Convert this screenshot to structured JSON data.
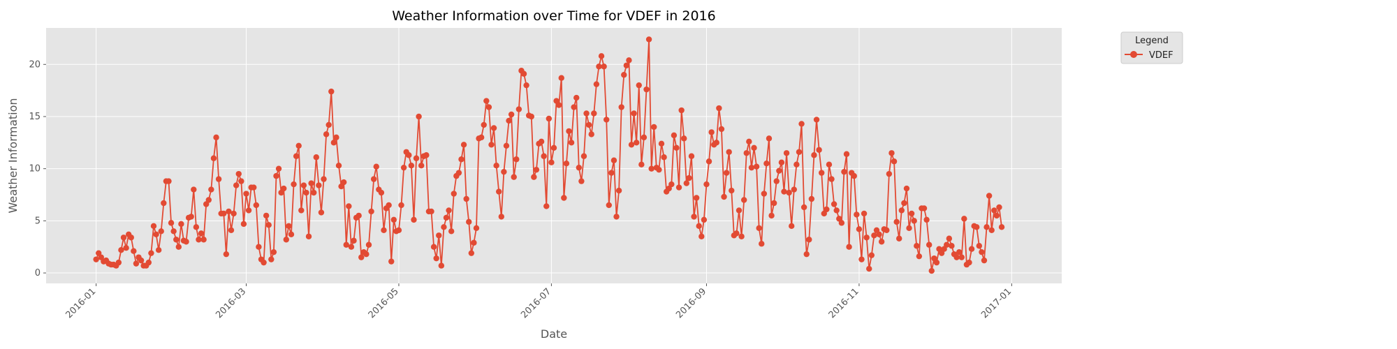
{
  "chart_data": {
    "type": "line",
    "title": "Weather Information over Time for VDEF in 2016",
    "xlabel": "Date",
    "ylabel": "Weather Information",
    "x_start": "2016-01-01",
    "x_step_days": 1,
    "xlim": [
      "2015-12-12",
      "2017-01-21"
    ],
    "ylim": [
      -1,
      23.5
    ],
    "x_ticks": [
      "2016-01",
      "2016-03",
      "2016-05",
      "2016-07",
      "2016-09",
      "2016-11",
      "2017-01"
    ],
    "y_ticks": [
      0,
      5,
      10,
      15,
      20
    ],
    "grid": true,
    "legend": {
      "title": "Legend",
      "position": "outside-top-right"
    },
    "series": [
      {
        "name": "VDEF",
        "color": "#e24a33",
        "marker": "circle",
        "values": [
          1.3,
          1.9,
          1.5,
          1.1,
          1.2,
          0.9,
          0.8,
          0.8,
          0.7,
          1.0,
          2.2,
          3.4,
          2.4,
          3.7,
          3.4,
          2.1,
          0.9,
          1.5,
          1.2,
          0.7,
          0.7,
          1.0,
          1.9,
          4.5,
          3.7,
          2.2,
          4.0,
          6.7,
          8.8,
          8.8,
          4.8,
          4.0,
          3.2,
          2.5,
          4.7,
          3.1,
          3.0,
          5.3,
          5.4,
          8.0,
          4.4,
          3.2,
          3.8,
          3.2,
          6.6,
          7.0,
          8.0,
          11.0,
          13.0,
          9.0,
          5.7,
          5.7,
          1.8,
          5.9,
          4.1,
          5.7,
          8.4,
          9.5,
          8.8,
          4.7,
          7.6,
          6.0,
          8.2,
          8.2,
          6.5,
          2.5,
          1.3,
          1.0,
          5.5,
          4.6,
          1.3,
          2.0,
          9.3,
          10.0,
          7.7,
          8.1,
          3.2,
          4.5,
          3.7,
          8.5,
          11.2,
          12.2,
          6.0,
          8.4,
          7.7,
          3.5,
          8.6,
          7.7,
          11.1,
          8.4,
          5.8,
          9.0,
          13.3,
          14.2,
          17.4,
          12.5,
          13.0,
          10.3,
          8.3,
          8.7,
          2.7,
          6.4,
          2.5,
          3.1,
          5.3,
          5.5,
          1.5,
          2.0,
          1.8,
          2.7,
          5.9,
          9.0,
          10.2,
          8.0,
          7.7,
          4.1,
          6.2,
          6.5,
          1.1,
          5.1,
          4.0,
          4.1,
          6.5,
          10.1,
          11.6,
          11.3,
          10.3,
          5.1,
          11.0,
          15.0,
          10.3,
          11.2,
          11.3,
          5.9,
          5.9,
          2.5,
          1.4,
          3.6,
          0.7,
          4.4,
          5.3,
          6.0,
          4.0,
          7.6,
          9.3,
          9.6,
          10.9,
          12.3,
          7.1,
          4.9,
          1.9,
          2.9,
          4.3,
          12.9,
          13.0,
          14.2,
          16.5,
          15.9,
          12.3,
          13.9,
          10.3,
          7.8,
          5.4,
          9.7,
          12.2,
          14.6,
          15.2,
          9.2,
          10.9,
          15.7,
          19.4,
          19.1,
          18.0,
          15.1,
          15.0,
          9.2,
          9.9,
          12.4,
          12.6,
          11.2,
          6.4,
          14.8,
          10.6,
          12.0,
          16.5,
          16.1,
          18.7,
          7.2,
          10.5,
          13.6,
          12.5,
          15.9,
          16.8,
          10.1,
          8.8,
          11.2,
          15.3,
          14.2,
          13.3,
          15.3,
          18.1,
          19.8,
          20.8,
          19.8,
          14.7,
          6.5,
          9.6,
          10.8,
          5.4,
          7.9,
          15.9,
          19.0,
          19.9,
          20.4,
          12.3,
          15.3,
          12.5,
          18.0,
          10.4,
          13.0,
          17.6,
          22.4,
          10.0,
          14.0,
          10.1,
          9.9,
          12.4,
          11.1,
          7.8,
          8.1,
          8.5,
          13.2,
          12.0,
          8.2,
          15.6,
          12.9,
          8.6,
          9.1,
          11.2,
          5.4,
          7.2,
          4.5,
          3.5,
          5.1,
          8.5,
          10.7,
          13.5,
          12.3,
          12.5,
          15.8,
          13.8,
          7.3,
          9.6,
          11.6,
          7.9,
          3.6,
          3.8,
          6.0,
          3.5,
          7.0,
          11.5,
          12.6,
          10.1,
          12.0,
          10.2,
          4.3,
          2.8,
          7.6,
          10.5,
          12.9,
          5.5,
          6.7,
          8.8,
          9.8,
          10.6,
          7.8,
          11.5,
          7.7,
          4.5,
          8.0,
          10.4,
          11.6,
          14.3,
          6.3,
          1.8,
          3.2,
          7.1,
          11.3,
          14.7,
          11.8,
          9.6,
          5.7,
          6.1,
          10.4,
          9.0,
          6.6,
          6.0,
          5.2,
          4.8,
          9.7,
          11.4,
          2.5,
          9.6,
          9.3,
          5.6,
          4.2,
          1.3,
          5.7,
          3.4,
          0.4,
          1.7,
          3.6,
          4.1,
          3.7,
          3.0,
          4.2,
          4.1,
          9.5,
          11.5,
          10.7,
          4.9,
          3.3,
          6.0,
          6.7,
          8.1,
          4.3,
          5.7,
          5.0,
          2.6,
          1.6,
          6.2,
          6.2,
          5.1,
          2.7,
          0.2,
          1.4,
          1.0,
          2.3,
          1.9,
          2.3,
          2.7,
          3.3,
          2.6,
          1.8,
          1.5,
          2.0,
          1.5,
          5.2,
          0.8,
          1.0,
          2.3,
          4.5,
          4.4,
          2.6,
          2.0,
          1.2,
          4.4,
          7.4,
          4.1,
          6.0,
          5.5,
          6.3,
          4.4
        ]
      }
    ]
  }
}
